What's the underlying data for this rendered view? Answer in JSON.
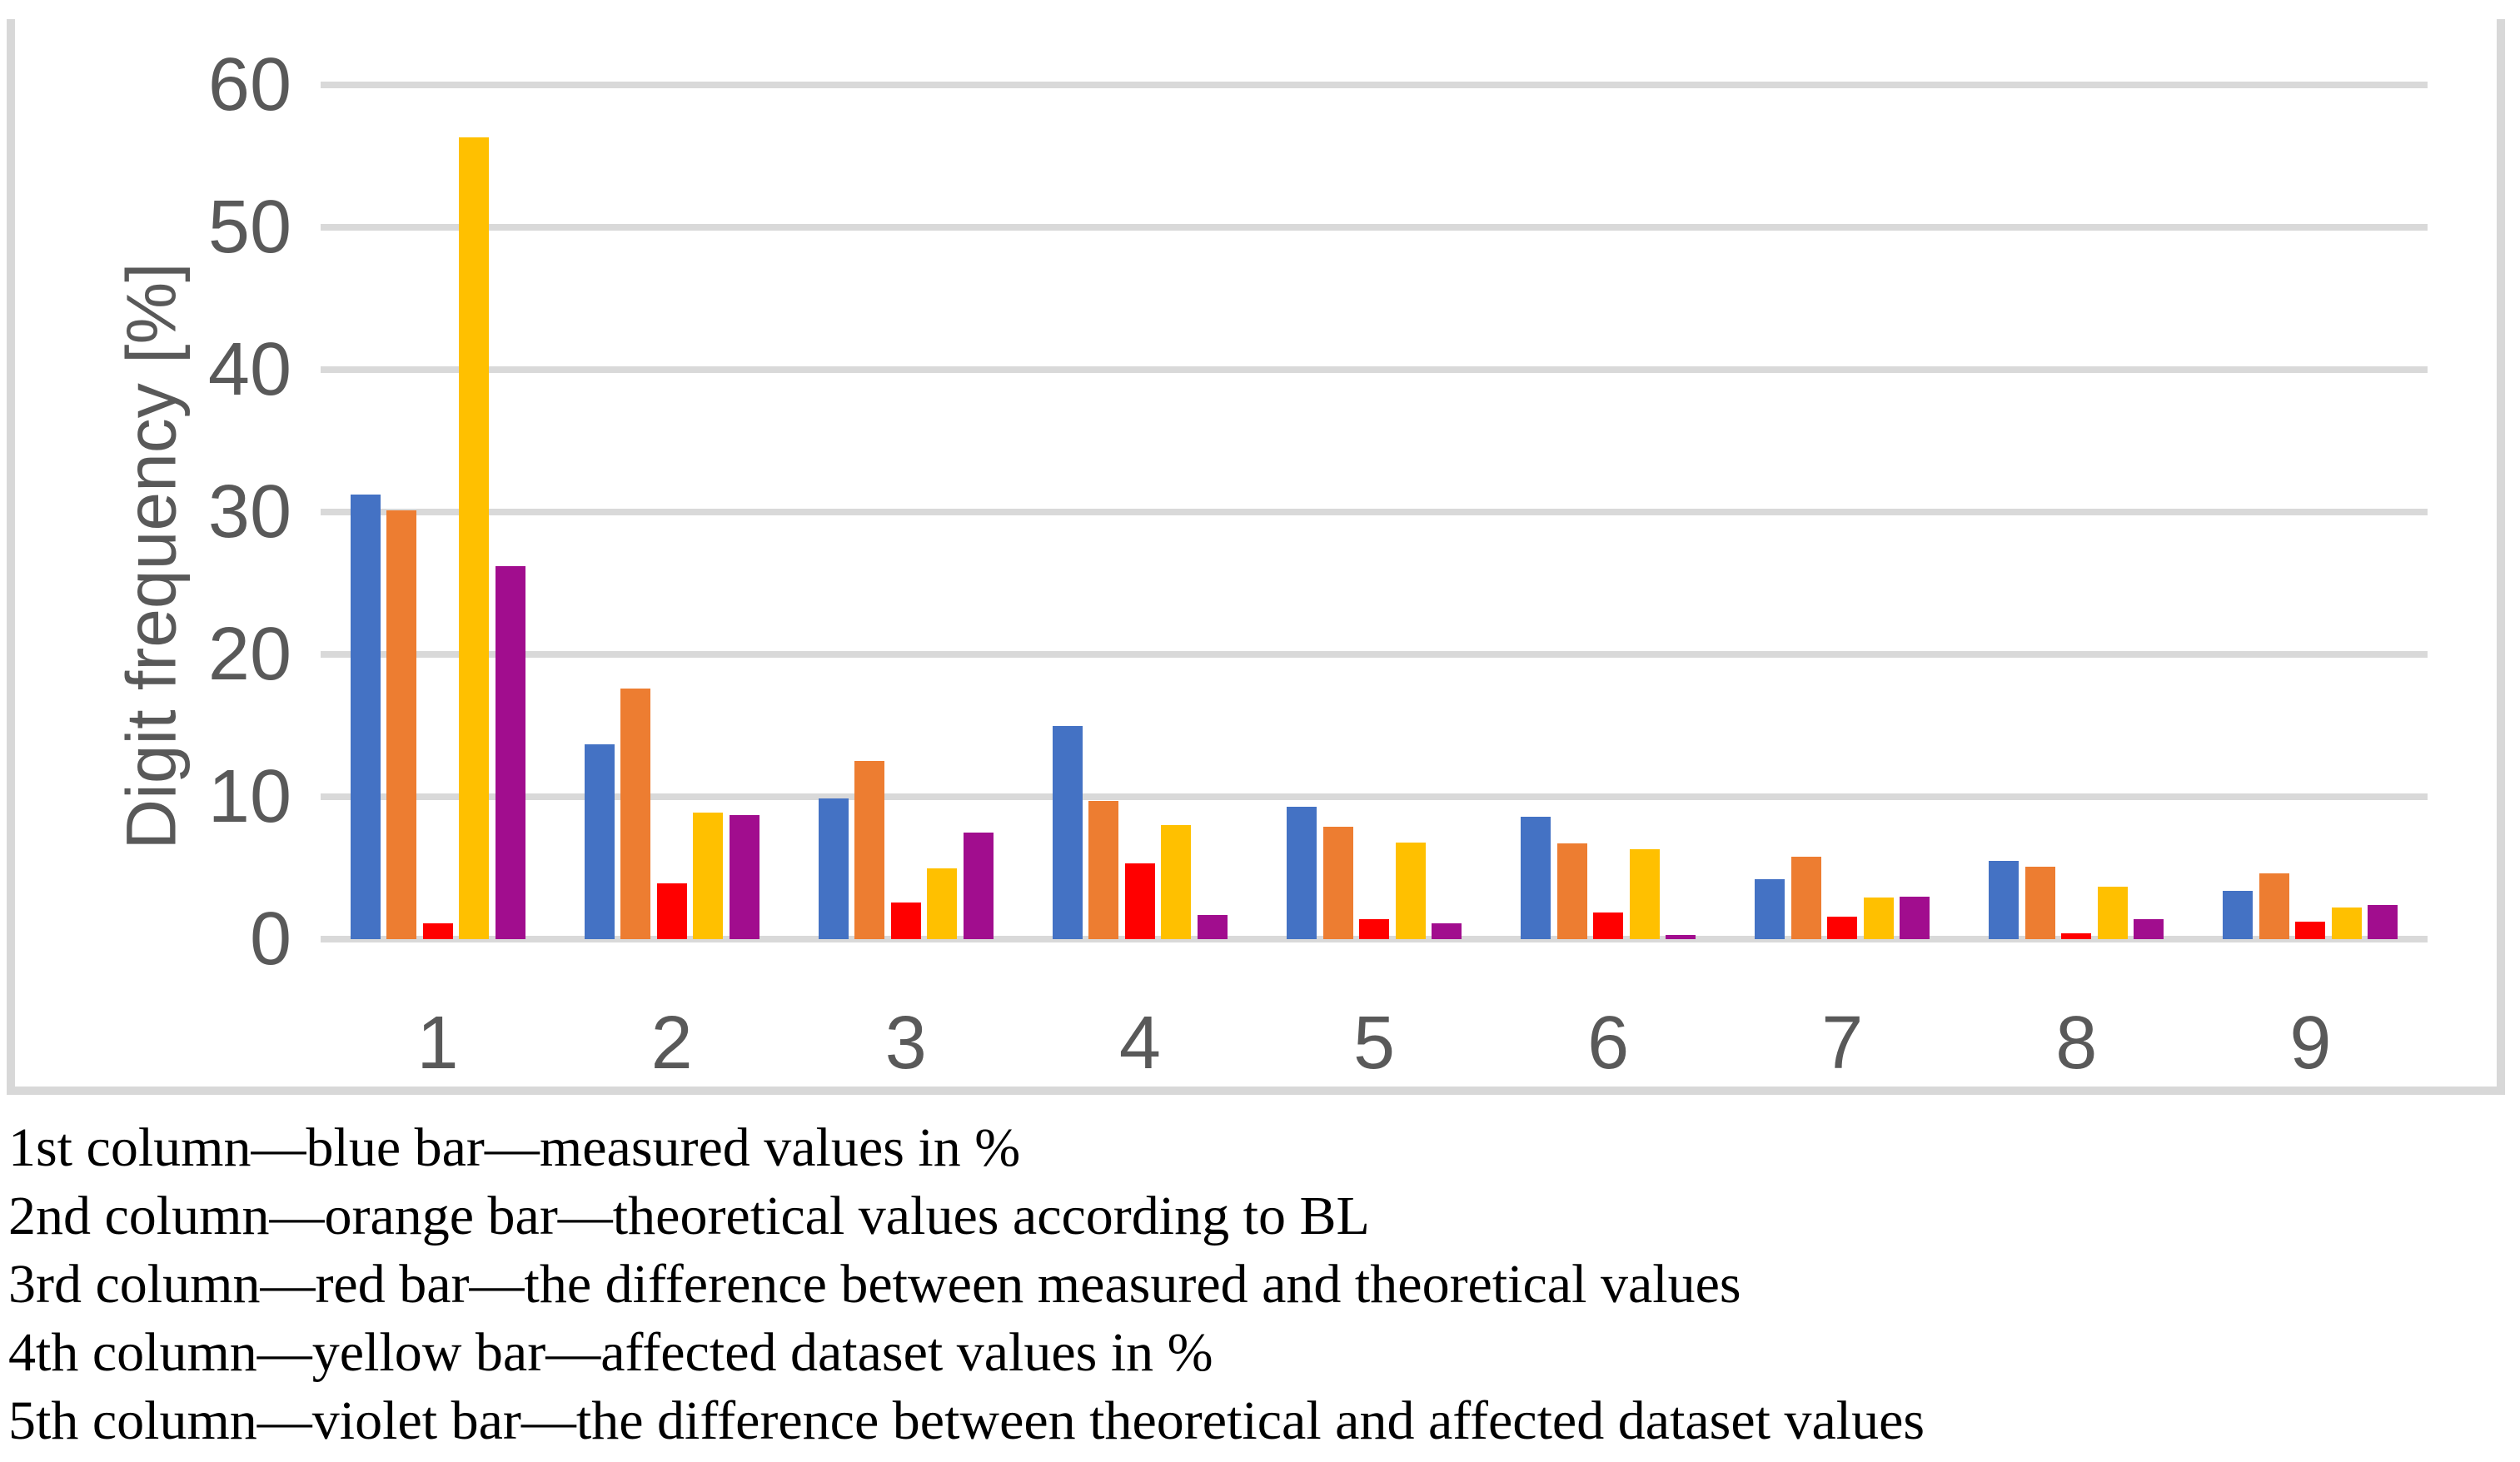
{
  "chart_data": {
    "type": "bar",
    "title": "",
    "xlabel": "",
    "ylabel": "Digit frequency [%]",
    "ylim": [
      0,
      60
    ],
    "yticks": [
      0,
      10,
      20,
      30,
      40,
      50,
      60
    ],
    "grid": true,
    "legend_position": "none",
    "categories": [
      "1",
      "2",
      "3",
      "4",
      "5",
      "6",
      "7",
      "8",
      "9"
    ],
    "series": [
      {
        "name": "measured values in %",
        "color": "#4472C4",
        "values": [
          31.2,
          13.7,
          9.9,
          15.0,
          9.3,
          8.6,
          4.2,
          5.5,
          3.4
        ]
      },
      {
        "name": "theoretical values according to BL",
        "color": "#ED7D31",
        "values": [
          30.1,
          17.6,
          12.5,
          9.7,
          7.9,
          6.7,
          5.8,
          5.1,
          4.6
        ]
      },
      {
        "name": "the difference between measured and theoretical values",
        "color": "#FF0000",
        "values": [
          1.1,
          3.9,
          2.6,
          5.3,
          1.4,
          1.9,
          1.6,
          0.4,
          1.2
        ]
      },
      {
        "name": "affected dataset values in %",
        "color": "#FFC000",
        "values": [
          56.3,
          8.9,
          5.0,
          8.0,
          6.8,
          6.3,
          2.9,
          3.7,
          2.2
        ]
      },
      {
        "name": "the difference between theoretical and affected dataset values",
        "color": "#A10D8E",
        "values": [
          26.2,
          8.7,
          7.5,
          1.7,
          1.1,
          0.3,
          3.0,
          1.4,
          2.4
        ]
      }
    ],
    "colors": {
      "gridline": "#D9D9D9",
      "axis_text": "#595959",
      "frame": "#D8D8D8"
    }
  },
  "caption": {
    "lines": [
      "1st column—blue bar—measured values in %",
      "2nd column—orange bar—theoretical values according to BL",
      "3rd column—red bar—the difference between measured and theoretical values",
      "4th column—yellow bar—affected dataset values in %",
      "5th column—violet bar—the difference between theoretical and affected dataset values"
    ]
  }
}
